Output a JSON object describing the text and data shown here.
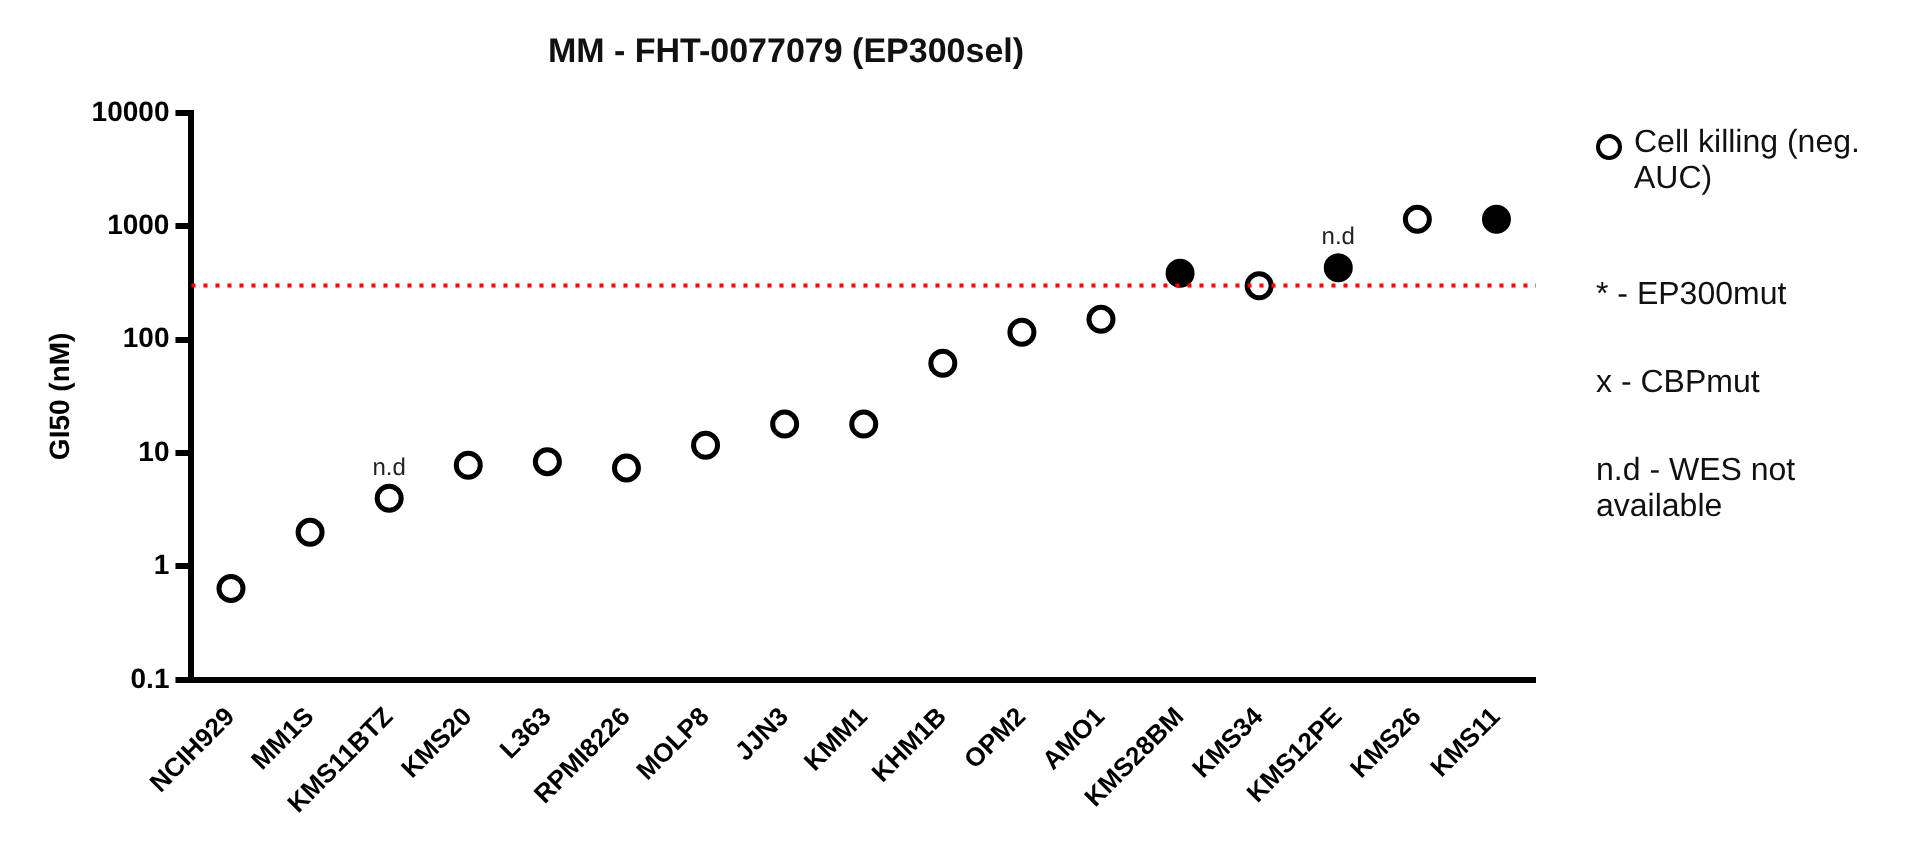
{
  "chart_data": {
    "type": "scatter",
    "title": "MM - FHT-0077079 (EP300sel)",
    "ylabel": "GI50 (nM)",
    "categories": [
      "NCIH929",
      "MM1S",
      "KMS11BTZ",
      "KMS20",
      "L363",
      "RPMI8226",
      "MOLP8",
      "JJN3",
      "KMM1",
      "KHM1B",
      "OPM2",
      "AMO1",
      "KMS28BM",
      "KMS34",
      "KMS12PE",
      "KMS26",
      "KMS11"
    ],
    "series": [
      {
        "name": "Cell killing (neg. AUC)",
        "color": "#000000",
        "values": [
          0.64,
          2.0,
          4.0,
          7.8,
          8.4,
          7.4,
          11.7,
          18,
          18,
          62,
          116,
          151,
          null,
          299,
          null,
          1150,
          null
        ]
      },
      {
        "color": "#000000",
        "values": [
          null,
          null,
          null,
          null,
          null,
          null,
          null,
          null,
          null,
          null,
          null,
          null,
          385,
          null,
          430,
          null,
          1150
        ]
      }
    ],
    "log": true,
    "ylim": [
      0.1,
      10000
    ],
    "yticks": [
      {
        "value": 0.1,
        "label": "0.1"
      },
      1,
      10,
      100,
      1000,
      10000
    ],
    "grid": false,
    "marker": "circle",
    "legend": "right",
    "ref_lines": [
      {
        "axis": "y",
        "value": 300,
        "color": "#ff0000",
        "line_style": "dotted"
      }
    ],
    "annotations": [
      {
        "text": "n.d",
        "x": "KMS11BTZ",
        "y": 4.0
      },
      {
        "text": "n.d",
        "x": "KMS12PE",
        "y": 430
      },
      "* - EP300mut",
      "x - CBPmut",
      "n.d - WES not available"
    ]
  }
}
